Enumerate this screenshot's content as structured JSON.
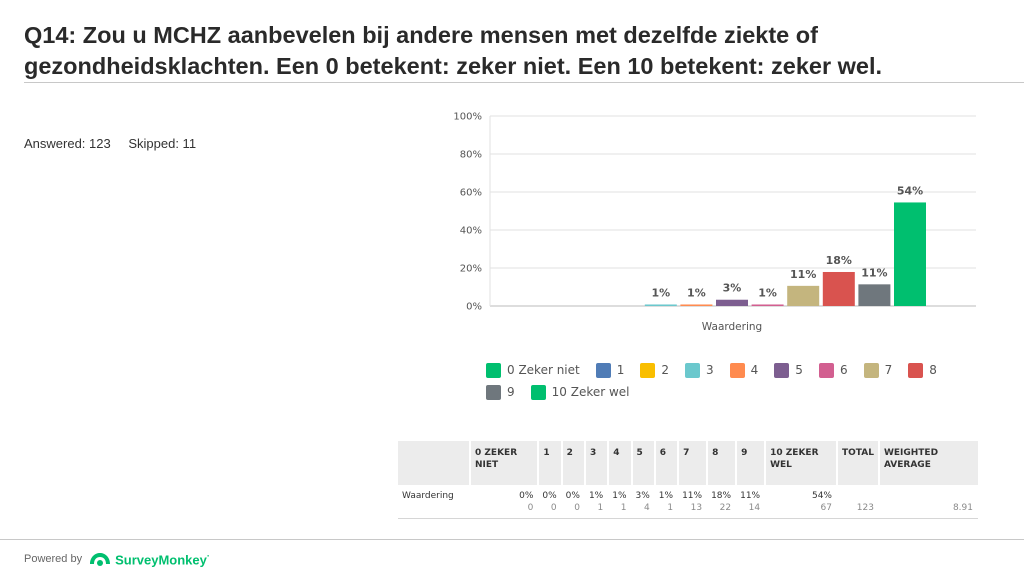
{
  "title": "Q14: Zou u MCHZ aanbevelen bij andere mensen met dezelfde ziekte of gezondheidsklachten. Een 0 betekent: zeker niet. Een 10 betekent: zeker wel.",
  "answered": "Answered: 123",
  "skipped": "Skipped: 11",
  "chart_data": {
    "type": "bar",
    "xlabel": "Waardering",
    "ylim": [
      0,
      100
    ],
    "yticks": [
      "0%",
      "20%",
      "40%",
      "60%",
      "80%",
      "100%"
    ],
    "categories": [
      "Waardering"
    ],
    "series": [
      {
        "name": "0 Zeker niet",
        "color": "#00bf6f",
        "value": 0,
        "label": ""
      },
      {
        "name": "1",
        "color": "#507cb6",
        "value": 0,
        "label": ""
      },
      {
        "name": "2",
        "color": "#f9be00",
        "value": 0,
        "label": ""
      },
      {
        "name": "3",
        "color": "#6bc8cd",
        "value": 0.8,
        "label": "1%"
      },
      {
        "name": "4",
        "color": "#ff8b4f",
        "value": 0.8,
        "label": "1%"
      },
      {
        "name": "5",
        "color": "#7d5e90",
        "value": 3.3,
        "label": "3%"
      },
      {
        "name": "6",
        "color": "#d25f90",
        "value": 0.8,
        "label": "1%"
      },
      {
        "name": "7",
        "color": "#c4b57e",
        "value": 10.6,
        "label": "11%"
      },
      {
        "name": "8",
        "color": "#d9534f",
        "value": 17.9,
        "label": "18%"
      },
      {
        "name": "9",
        "color": "#6f777d",
        "value": 11.4,
        "label": "11%"
      },
      {
        "name": "10 Zeker wel",
        "color": "#00bf6f",
        "value": 54.5,
        "label": "54%"
      }
    ]
  },
  "table": {
    "headers": [
      "",
      "0 ZEKER NIET",
      "1",
      "2",
      "3",
      "4",
      "5",
      "6",
      "7",
      "8",
      "9",
      "10 ZEKER WEL",
      "TOTAL",
      "WEIGHTED AVERAGE"
    ],
    "row_label": "Waardering",
    "percents": [
      "0%",
      "0%",
      "0%",
      "1%",
      "1%",
      "3%",
      "1%",
      "11%",
      "18%",
      "11%",
      "54%"
    ],
    "counts": [
      "0",
      "0",
      "0",
      "1",
      "1",
      "4",
      "1",
      "13",
      "22",
      "14",
      "67"
    ],
    "total": "123",
    "weighted_average": "8.91"
  },
  "footer": {
    "powered_by": "Powered by",
    "brand": "SurveyMonkey",
    "brand_mark": "·"
  }
}
